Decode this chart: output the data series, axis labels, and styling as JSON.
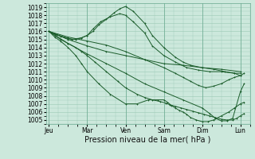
{
  "background_color": "#cce8dc",
  "grid_color": "#9ac8b4",
  "line_color": "#1a5c2a",
  "ylim": [
    1004.5,
    1019.5
  ],
  "yticks": [
    1005,
    1006,
    1007,
    1008,
    1009,
    1010,
    1011,
    1012,
    1013,
    1014,
    1015,
    1016,
    1017,
    1018,
    1019
  ],
  "xlabel": "Pression niveau de la mer( hPa )",
  "day_labels": [
    "Jeu",
    "Mar",
    "Ven",
    "Sam",
    "Dim",
    "Lun"
  ],
  "day_positions": [
    0,
    1,
    2,
    3,
    4,
    5
  ],
  "tick_fontsize": 5.5,
  "xlabel_fontsize": 7,
  "lines": [
    {
      "x": [
        0.0,
        0.15,
        0.3,
        0.5,
        0.7,
        0.85,
        1.0,
        1.15,
        1.3,
        1.5,
        1.7,
        1.85,
        2.0,
        2.2,
        2.5,
        2.7,
        3.0,
        3.3,
        3.5,
        3.7,
        4.0,
        4.3,
        4.6,
        4.85,
        5.0
      ],
      "y": [
        1016.0,
        1015.7,
        1015.4,
        1015.1,
        1015.0,
        1015.2,
        1015.5,
        1016.0,
        1016.8,
        1017.5,
        1018.3,
        1018.8,
        1019.1,
        1018.5,
        1017.0,
        1015.5,
        1014.0,
        1012.8,
        1012.2,
        1011.8,
        1011.5,
        1011.3,
        1011.0,
        1010.8,
        1010.8
      ]
    },
    {
      "x": [
        0.0,
        0.2,
        0.4,
        0.6,
        0.85,
        1.0,
        1.15,
        1.35,
        1.6,
        1.85,
        2.0,
        2.2,
        2.5,
        2.7,
        3.0,
        3.3,
        3.6,
        3.9,
        4.2,
        4.5,
        4.85,
        5.0
      ],
      "y": [
        1016.0,
        1015.6,
        1015.3,
        1015.0,
        1015.2,
        1015.5,
        1016.3,
        1017.2,
        1017.8,
        1018.2,
        1018.0,
        1017.2,
        1015.8,
        1014.2,
        1013.0,
        1012.2,
        1011.5,
        1011.2,
        1011.0,
        1011.0,
        1010.8,
        1010.5
      ]
    },
    {
      "x": [
        0.0,
        0.5,
        1.0,
        1.5,
        2.0,
        2.5,
        3.0,
        3.5,
        4.0,
        4.5,
        5.0
      ],
      "y": [
        1016.0,
        1015.0,
        1014.2,
        1013.5,
        1013.0,
        1012.5,
        1012.0,
        1011.8,
        1011.5,
        1011.3,
        1011.0
      ]
    },
    {
      "x": [
        0.0,
        0.15,
        0.3,
        0.5,
        0.7,
        0.85,
        1.0,
        1.2,
        1.5,
        1.8,
        2.0,
        2.3,
        2.5,
        2.7,
        2.9,
        3.05,
        3.15,
        3.3,
        3.45,
        3.6,
        3.75,
        3.9,
        4.05,
        4.2,
        4.35,
        4.5,
        4.65,
        4.8,
        4.9,
        5.0,
        5.1
      ],
      "y": [
        1016.0,
        1015.5,
        1015.0,
        1014.5,
        1014.0,
        1013.5,
        1013.0,
        1012.2,
        1011.0,
        1009.8,
        1009.0,
        1008.2,
        1007.8,
        1007.5,
        1007.3,
        1007.1,
        1006.9,
        1006.7,
        1006.5,
        1006.3,
        1006.1,
        1005.9,
        1005.7,
        1005.5,
        1005.3,
        1005.1,
        1005.0,
        1005.0,
        1005.2,
        1005.5,
        1005.8
      ]
    },
    {
      "x": [
        0.0,
        0.15,
        0.3,
        0.5,
        0.7,
        0.85,
        1.0,
        1.3,
        1.6,
        2.0,
        2.3,
        2.6,
        2.85,
        3.0,
        3.1,
        3.2,
        3.3,
        3.4,
        3.5,
        3.6,
        3.7,
        3.85,
        4.0,
        4.15,
        4.3,
        4.5,
        4.7,
        4.85,
        5.0,
        5.1
      ],
      "y": [
        1016.0,
        1015.3,
        1014.8,
        1014.0,
        1013.0,
        1012.0,
        1011.0,
        1009.5,
        1008.2,
        1007.0,
        1007.0,
        1007.5,
        1007.5,
        1007.5,
        1007.2,
        1006.8,
        1006.5,
        1006.2,
        1006.0,
        1005.7,
        1005.3,
        1005.0,
        1004.8,
        1004.8,
        1005.0,
        1005.5,
        1006.0,
        1006.5,
        1007.0,
        1007.2
      ]
    },
    {
      "x": [
        0.0,
        0.5,
        1.0,
        1.5,
        2.0,
        2.5,
        3.0,
        3.5,
        4.0,
        4.2,
        4.35,
        4.5,
        4.65,
        4.8,
        5.0,
        5.1
      ],
      "y": [
        1016.0,
        1014.5,
        1013.2,
        1012.0,
        1010.8,
        1009.5,
        1008.5,
        1007.5,
        1006.5,
        1005.8,
        1005.2,
        1004.9,
        1004.9,
        1005.2,
        1008.5,
        1009.5
      ]
    },
    {
      "x": [
        0.0,
        0.5,
        1.0,
        1.5,
        2.0,
        2.5,
        3.0,
        3.3,
        3.5,
        3.7,
        3.9,
        4.1,
        4.3,
        4.5,
        4.7,
        4.85,
        5.0,
        5.1
      ],
      "y": [
        1016.0,
        1015.3,
        1014.8,
        1014.3,
        1013.5,
        1012.5,
        1011.5,
        1010.8,
        1010.3,
        1009.8,
        1009.3,
        1009.0,
        1009.2,
        1009.5,
        1010.0,
        1010.3,
        1010.5,
        1010.8
      ]
    }
  ]
}
